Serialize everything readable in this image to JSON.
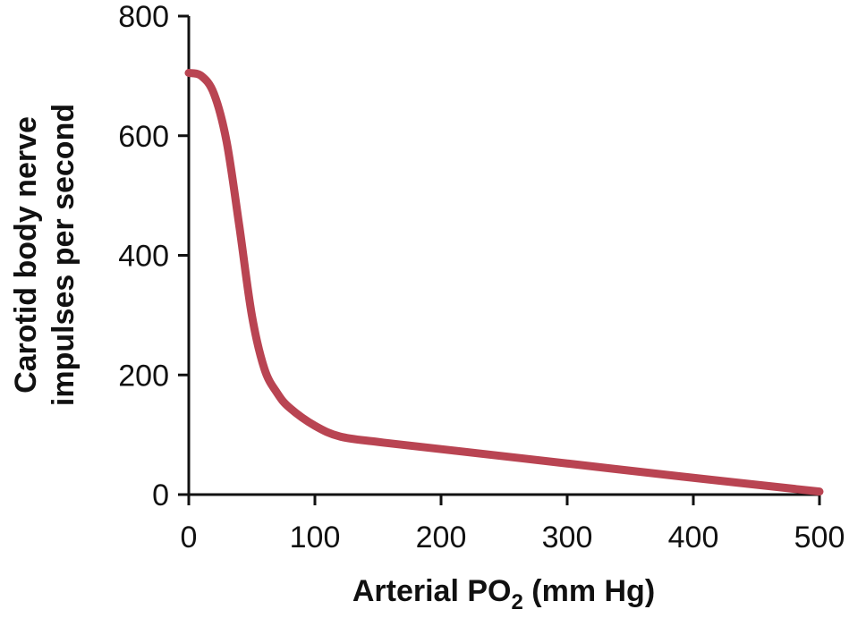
{
  "chart_data": {
    "type": "line",
    "title": "",
    "xlabel": "Arterial PO",
    "xlabel_subscript": "2",
    "xlabel_suffix": " (mm Hg)",
    "ylabel_lines": [
      "Carotid body nerve",
      "impulses per second"
    ],
    "xlim": [
      0,
      500
    ],
    "ylim": [
      0,
      800
    ],
    "x_ticks": [
      0,
      100,
      200,
      300,
      400,
      500
    ],
    "y_ticks": [
      0,
      200,
      400,
      600,
      800
    ],
    "x_tick_labels": [
      "0",
      "100",
      "200",
      "300",
      "400",
      "500"
    ],
    "y_tick_labels": [
      "0",
      "200",
      "400",
      "600",
      "800"
    ],
    "grid": false,
    "legend": "none",
    "series": [
      {
        "color": "#b94452",
        "x": [
          0,
          10,
          20,
          30,
          40,
          50,
          60,
          70,
          80,
          100,
          120,
          150,
          200,
          300,
          400,
          500
        ],
        "y": [
          705,
          700,
          670,
          590,
          450,
          300,
          210,
          170,
          145,
          115,
          97,
          88,
          76,
          52,
          28,
          5
        ]
      }
    ]
  }
}
